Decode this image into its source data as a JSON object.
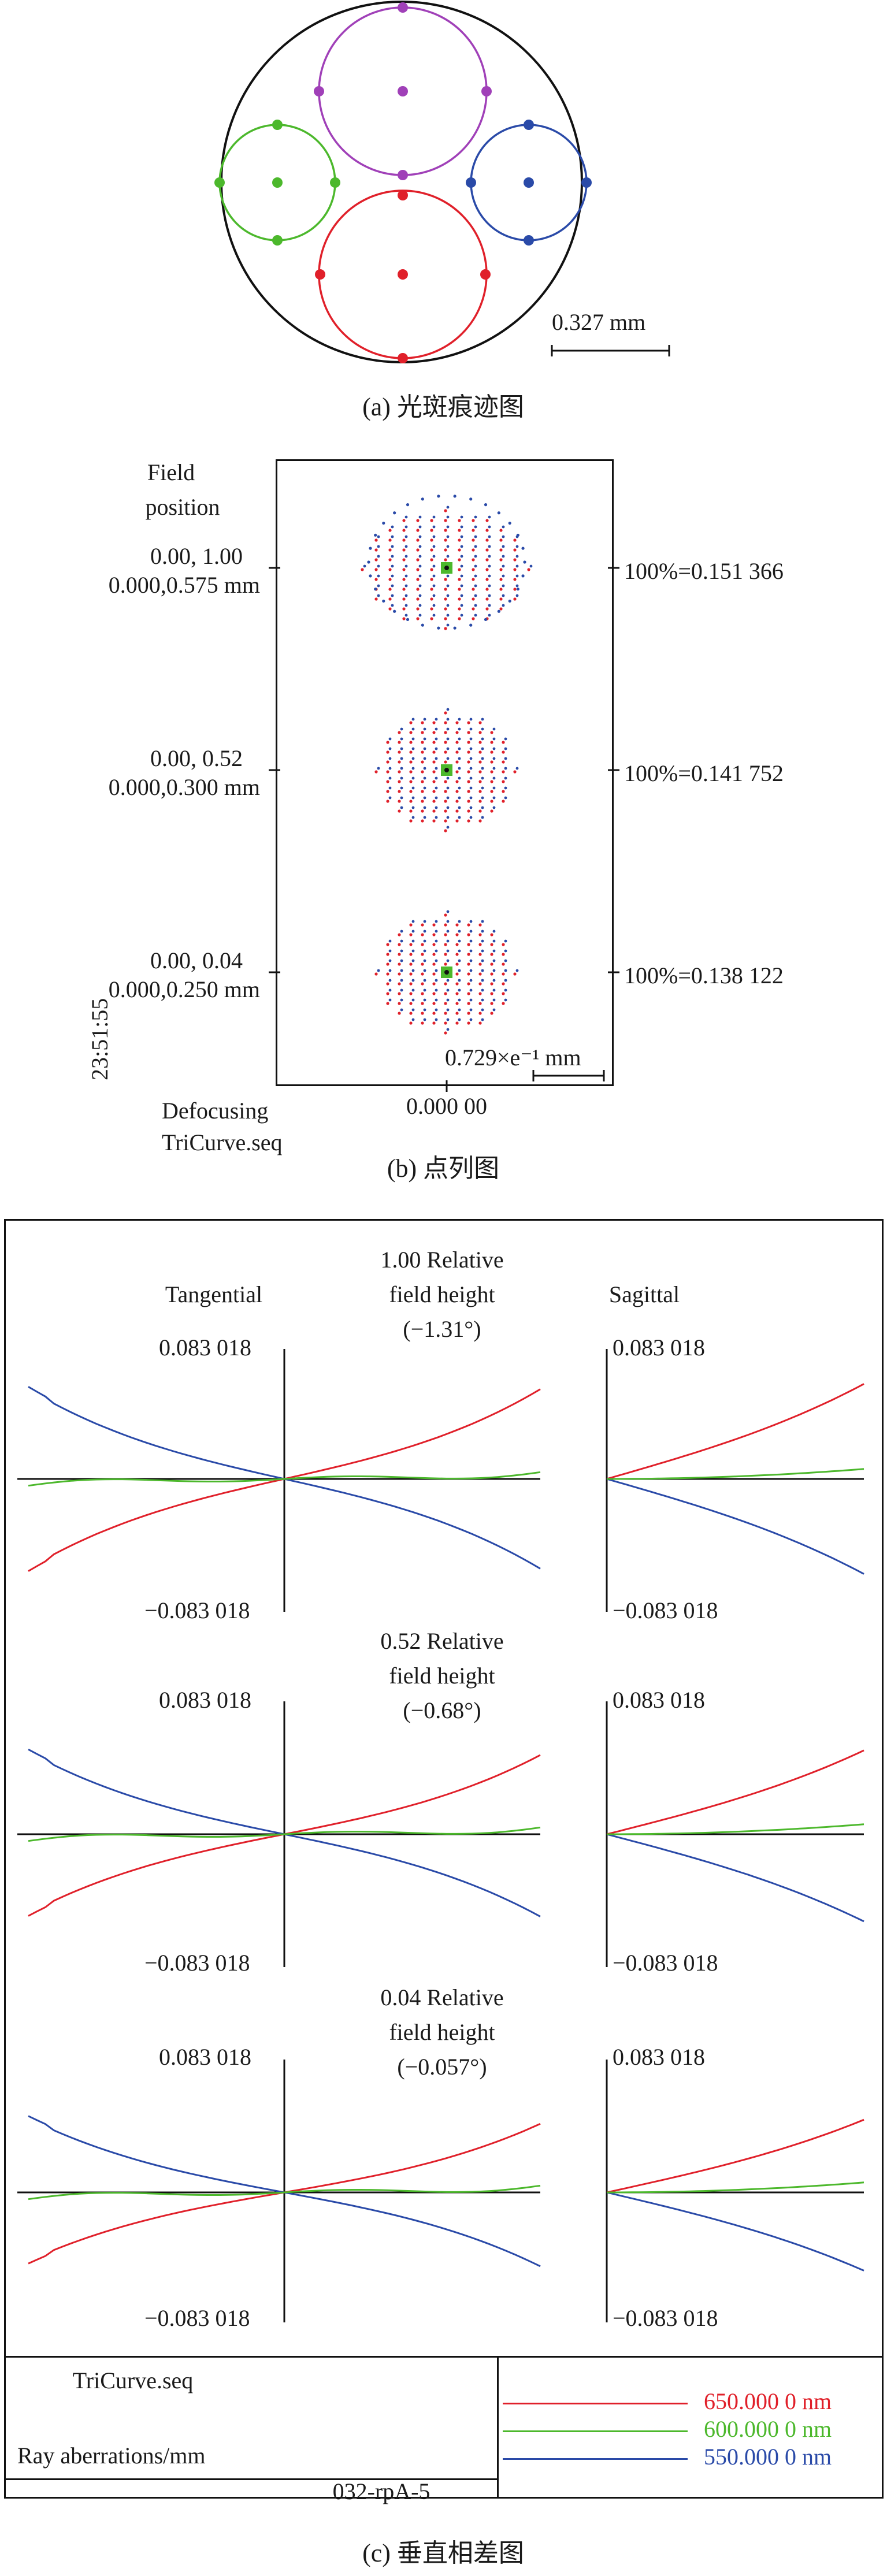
{
  "panel_a": {
    "caption": "(a) 光斑痕迹图",
    "scale_label": "0.327 mm",
    "colors": {
      "outer": "#111111",
      "green": "#4cb82c",
      "purple": "#a040b8",
      "blue": "#2a4aa8",
      "red": "#e0202a"
    }
  },
  "panel_b": {
    "caption": "(b) 点列图",
    "field_position_label": "Field\nposition",
    "field_position_line1": "Field",
    "field_position_line2": "position",
    "fields": [
      {
        "line1": "0.00, 1.00",
        "line2": "0.000,0.575 mm",
        "rms": "100%=0.151 366"
      },
      {
        "line1": "0.00, 0.52",
        "line2": "0.000,0.300 mm",
        "rms": "100%=0.141 752"
      },
      {
        "line1": "0.00, 0.04",
        "line2": "0.000,0.250 mm",
        "rms": "100%=0.138 122"
      }
    ],
    "scale_label": "0.729×e⁻¹ mm",
    "defocus_value": "0.000 00",
    "time": "23:51:55",
    "defocusing_label": "Defocusing",
    "file": "TriCurve.seq",
    "colors": {
      "red": "#e0202a",
      "blue": "#2a4aa8",
      "green": "#4cb82c"
    }
  },
  "panel_c": {
    "caption": "(c) 垂直相差图",
    "tangential_label": "Tangential",
    "sagittal_label": "Sagittal",
    "fields": [
      {
        "line1": "1.00 Relative",
        "line2": "field height",
        "line3": "(−1.31°)",
        "ymax": "0.083 018",
        "ymin": "−0.083 018"
      },
      {
        "line1": "0.52 Relative",
        "line2": "field height",
        "line3": "(−0.68°)",
        "ymax": "0.083 018",
        "ymin": "−0.083 018"
      },
      {
        "line1": "0.04 Relative",
        "line2": "field height",
        "line3": "(−0.057°)",
        "ymax": "0.083 018",
        "ymin": "−0.083 018"
      }
    ],
    "footer": {
      "file": "TriCurve.seq",
      "ylabel": "Ray aberrations/mm",
      "code": "032-rpA-5"
    },
    "legend": [
      {
        "name": "650.000 0 nm",
        "color": "#e0202a"
      },
      {
        "name": "600.000 0 nm",
        "color": "#4cb82c"
      },
      {
        "name": "550.000 0 nm",
        "color": "#2a4aa8"
      }
    ]
  }
}
